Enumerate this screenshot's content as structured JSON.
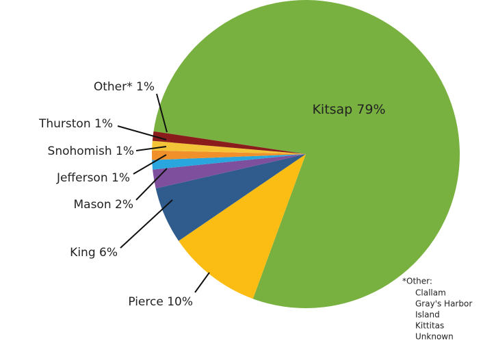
{
  "chart_data": {
    "type": "pie",
    "categories": [
      "Kitsap",
      "Pierce",
      "King",
      "Mason",
      "Jefferson",
      "Snohomish",
      "Thurston",
      "Other*"
    ],
    "values": [
      79,
      10,
      6,
      2,
      1,
      1,
      1,
      1
    ],
    "value_labels": [
      "79%",
      "10%",
      "6%",
      "2%",
      "1%",
      "1%",
      "1%",
      "1%"
    ],
    "colors": [
      "#78b140",
      "#fbbd13",
      "#2f5b8d",
      "#7d4f9c",
      "#29a6dd",
      "#f0902a",
      "#f3c438",
      "#8a1c1c"
    ],
    "footnote": {
      "title": "*Other:",
      "items": [
        "Clallam",
        "Gray's Harbor",
        "Island",
        "Kittitas",
        "Unknown"
      ]
    }
  }
}
